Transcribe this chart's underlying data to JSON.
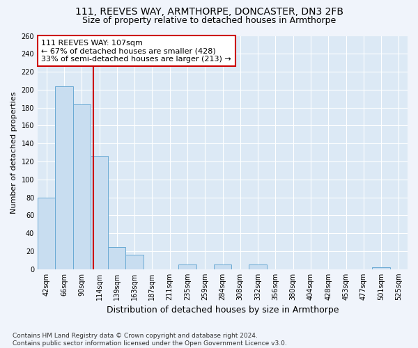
{
  "title1": "111, REEVES WAY, ARMTHORPE, DONCASTER, DN3 2FB",
  "title2": "Size of property relative to detached houses in Armthorpe",
  "xlabel": "Distribution of detached houses by size in Armthorpe",
  "ylabel": "Number of detached properties",
  "bar_color": "#c8ddf0",
  "bar_edge_color": "#6aaad4",
  "bg_color": "#dce9f5",
  "grid_color": "#ffffff",
  "categories": [
    "42sqm",
    "66sqm",
    "90sqm",
    "114sqm",
    "139sqm",
    "163sqm",
    "187sqm",
    "211sqm",
    "235sqm",
    "259sqm",
    "284sqm",
    "308sqm",
    "332sqm",
    "356sqm",
    "380sqm",
    "404sqm",
    "428sqm",
    "453sqm",
    "477sqm",
    "501sqm",
    "525sqm"
  ],
  "values": [
    80,
    204,
    184,
    126,
    25,
    16,
    0,
    0,
    5,
    0,
    5,
    0,
    5,
    0,
    0,
    0,
    0,
    0,
    0,
    2,
    0
  ],
  "vline_x": 2.67,
  "vline_color": "#cc0000",
  "annotation_text": "111 REEVES WAY: 107sqm\n← 67% of detached houses are smaller (428)\n33% of semi-detached houses are larger (213) →",
  "annotation_box_color": "#ffffff",
  "annotation_box_edge": "#cc0000",
  "ylim": [
    0,
    260
  ],
  "yticks": [
    0,
    20,
    40,
    60,
    80,
    100,
    120,
    140,
    160,
    180,
    200,
    220,
    240,
    260
  ],
  "footer": "Contains HM Land Registry data © Crown copyright and database right 2024.\nContains public sector information licensed under the Open Government Licence v3.0.",
  "title_fontsize": 10,
  "subtitle_fontsize": 9,
  "xlabel_fontsize": 9,
  "ylabel_fontsize": 8,
  "tick_fontsize": 7,
  "annot_fontsize": 8,
  "footer_fontsize": 6.5
}
